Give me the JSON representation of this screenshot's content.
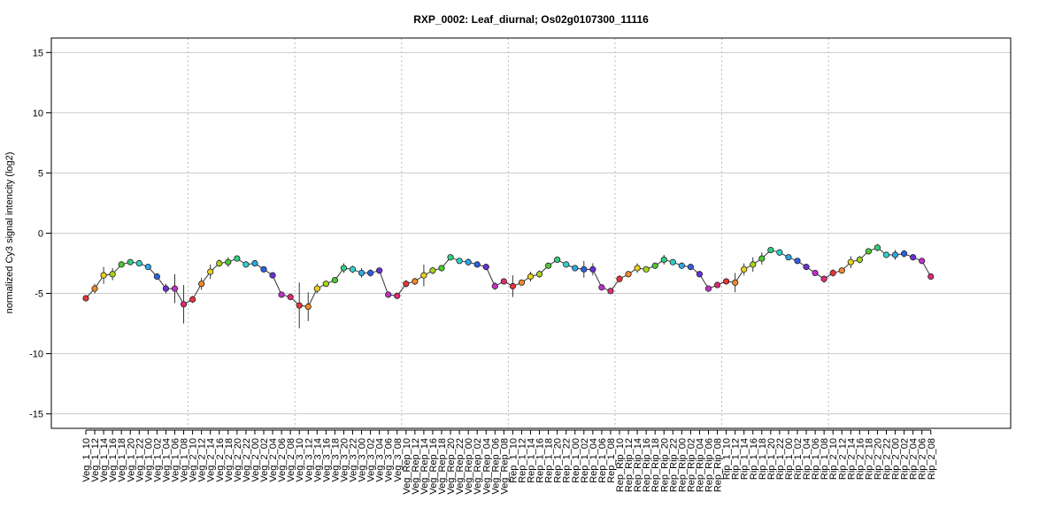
{
  "chart_data": {
    "type": "line",
    "title": "RXP_0002: Leaf_diurnal; Os02g0107300_11116",
    "ylabel": "normalized Cy3 signal intencity (log2)",
    "xlabel": "",
    "ylim": [
      -16.2,
      16.2
    ],
    "yticks": [
      -15,
      -10,
      -5,
      0,
      5,
      10,
      15
    ],
    "grid": true,
    "legend": "none",
    "group_separators_after_index": [
      11,
      23,
      35,
      47,
      59,
      71,
      83
    ],
    "points": [
      {
        "label": "Veg_1_10",
        "value": -5.4,
        "err": 0.25,
        "color": "#e8323c"
      },
      {
        "label": "Veg_1_12",
        "value": -4.6,
        "err": 0.4,
        "color": "#f08a2a"
      },
      {
        "label": "Veg_1_14",
        "value": -3.5,
        "err": 0.7,
        "color": "#e8d020"
      },
      {
        "label": "Veg_1_16",
        "value": -3.4,
        "err": 0.5,
        "color": "#a6d418"
      },
      {
        "label": "Veg_1_18",
        "value": -2.6,
        "err": 0.2,
        "color": "#4ec832"
      },
      {
        "label": "Veg_1_20",
        "value": -2.4,
        "err": 0.15,
        "color": "#30d080"
      },
      {
        "label": "Veg_1_22",
        "value": -2.5,
        "err": 0.15,
        "color": "#30d0c8"
      },
      {
        "label": "Veg_1_00",
        "value": -2.8,
        "err": 0.15,
        "color": "#2aa8e8"
      },
      {
        "label": "Veg_1_02",
        "value": -3.6,
        "err": 0.2,
        "color": "#3060e0"
      },
      {
        "label": "Veg_1_04",
        "value": -4.6,
        "err": 0.4,
        "color": "#6a30d8"
      },
      {
        "label": "Veg_1_06",
        "value": -4.6,
        "err": 1.2,
        "color": "#c030c8"
      },
      {
        "label": "Veg_1_08",
        "value": -5.9,
        "err": 1.6,
        "color": "#e02a78"
      },
      {
        "label": "Veg_2_10",
        "value": -5.5,
        "err": 0.3,
        "color": "#e8323c"
      },
      {
        "label": "Veg_2_12",
        "value": -4.2,
        "err": 0.5,
        "color": "#f08a2a"
      },
      {
        "label": "Veg_2_14",
        "value": -3.2,
        "err": 0.6,
        "color": "#e8d020"
      },
      {
        "label": "Veg_2_16",
        "value": -2.5,
        "err": 0.3,
        "color": "#a6d418"
      },
      {
        "label": "Veg_2_18",
        "value": -2.4,
        "err": 0.4,
        "color": "#4ec832"
      },
      {
        "label": "Veg_2_20",
        "value": -2.1,
        "err": 0.2,
        "color": "#30d080"
      },
      {
        "label": "Veg_2_22",
        "value": -2.6,
        "err": 0.15,
        "color": "#30d0c8"
      },
      {
        "label": "Veg_2_00",
        "value": -2.5,
        "err": 0.15,
        "color": "#2aa8e8"
      },
      {
        "label": "Veg_2_02",
        "value": -3.0,
        "err": 0.2,
        "color": "#3060e0"
      },
      {
        "label": "Veg_2_04",
        "value": -3.5,
        "err": 0.2,
        "color": "#6a30d8"
      },
      {
        "label": "Veg_2_06",
        "value": -5.1,
        "err": 0.15,
        "color": "#c030c8"
      },
      {
        "label": "Veg_2_08",
        "value": -5.3,
        "err": 0.15,
        "color": "#e02a78"
      },
      {
        "label": "Veg_3_10",
        "value": -6.0,
        "err": 1.9,
        "color": "#e8323c"
      },
      {
        "label": "Veg_3_12",
        "value": -6.1,
        "err": 1.2,
        "color": "#f08a2a"
      },
      {
        "label": "Veg_3_14",
        "value": -4.6,
        "err": 0.4,
        "color": "#e8d020"
      },
      {
        "label": "Veg_3_16",
        "value": -4.2,
        "err": 0.2,
        "color": "#a6d418"
      },
      {
        "label": "Veg_3_18",
        "value": -3.9,
        "err": 0.2,
        "color": "#4ec832"
      },
      {
        "label": "Veg_3_20",
        "value": -2.9,
        "err": 0.4,
        "color": "#30d080"
      },
      {
        "label": "Veg_3_22",
        "value": -3.0,
        "err": 0.3,
        "color": "#30d0c8"
      },
      {
        "label": "Veg_3_00",
        "value": -3.3,
        "err": 0.4,
        "color": "#2aa8e8"
      },
      {
        "label": "Veg_3_02",
        "value": -3.3,
        "err": 0.3,
        "color": "#3060e0"
      },
      {
        "label": "Veg_3_04",
        "value": -3.1,
        "err": 0.2,
        "color": "#6a30d8"
      },
      {
        "label": "Veg_3_06",
        "value": -5.1,
        "err": 0.15,
        "color": "#c030c8"
      },
      {
        "label": "Veg_3_08",
        "value": -5.2,
        "err": 0.2,
        "color": "#e02a78"
      },
      {
        "label": "Veg_Rep_10",
        "value": -4.2,
        "err": 0.3,
        "color": "#e8323c"
      },
      {
        "label": "Veg_Rep_12",
        "value": -4.0,
        "err": 0.3,
        "color": "#f08a2a"
      },
      {
        "label": "Veg_Rep_14",
        "value": -3.5,
        "err": 0.9,
        "color": "#e8d020"
      },
      {
        "label": "Veg_Rep_16",
        "value": -3.1,
        "err": 0.3,
        "color": "#a6d418"
      },
      {
        "label": "Veg_Rep_18",
        "value": -2.9,
        "err": 0.2,
        "color": "#4ec832"
      },
      {
        "label": "Veg_Rep_20",
        "value": -2.0,
        "err": 0.15,
        "color": "#30d080"
      },
      {
        "label": "Veg_Rep_22",
        "value": -2.3,
        "err": 0.15,
        "color": "#30d0c8"
      },
      {
        "label": "Veg_Rep_00",
        "value": -2.4,
        "err": 0.3,
        "color": "#2aa8e8"
      },
      {
        "label": "Veg_Rep_02",
        "value": -2.6,
        "err": 0.2,
        "color": "#3060e0"
      },
      {
        "label": "Veg_Rep_04",
        "value": -2.8,
        "err": 0.15,
        "color": "#6a30d8"
      },
      {
        "label": "Veg_Rep_06",
        "value": -4.4,
        "err": 0.3,
        "color": "#c030c8"
      },
      {
        "label": "Veg_Rep_08",
        "value": -4.0,
        "err": 0.15,
        "color": "#e02a78"
      },
      {
        "label": "Rep_1_10",
        "value": -4.4,
        "err": 0.9,
        "color": "#e8323c"
      },
      {
        "label": "Rep_1_12",
        "value": -4.1,
        "err": 0.2,
        "color": "#f08a2a"
      },
      {
        "label": "Rep_1_14",
        "value": -3.6,
        "err": 0.4,
        "color": "#e8d020"
      },
      {
        "label": "Rep_1_16",
        "value": -3.4,
        "err": 0.3,
        "color": "#a6d418"
      },
      {
        "label": "Rep_1_18",
        "value": -2.7,
        "err": 0.15,
        "color": "#4ec832"
      },
      {
        "label": "Rep_1_20",
        "value": -2.2,
        "err": 0.15,
        "color": "#30d080"
      },
      {
        "label": "Rep_1_22",
        "value": -2.6,
        "err": 0.15,
        "color": "#30d0c8"
      },
      {
        "label": "Rep_1_00",
        "value": -2.9,
        "err": 0.15,
        "color": "#2aa8e8"
      },
      {
        "label": "Rep_1_02",
        "value": -3.0,
        "err": 0.7,
        "color": "#3060e0"
      },
      {
        "label": "Rep_1_04",
        "value": -3.0,
        "err": 0.5,
        "color": "#6a30d8"
      },
      {
        "label": "Rep_1_06",
        "value": -4.5,
        "err": 0.15,
        "color": "#c030c8"
      },
      {
        "label": "Rep_1_08",
        "value": -4.8,
        "err": 0.15,
        "color": "#e02a78"
      },
      {
        "label": "Rep_Rip_10",
        "value": -3.8,
        "err": 0.3,
        "color": "#e8323c"
      },
      {
        "label": "Rep_Rip_12",
        "value": -3.4,
        "err": 0.2,
        "color": "#f08a2a"
      },
      {
        "label": "Rep_Rip_14",
        "value": -2.9,
        "err": 0.4,
        "color": "#e8d020"
      },
      {
        "label": "Rep_Rip_16",
        "value": -3.0,
        "err": 0.2,
        "color": "#a6d418"
      },
      {
        "label": "Rep_Rip_18",
        "value": -2.7,
        "err": 0.2,
        "color": "#4ec832"
      },
      {
        "label": "Rep_Rip_20",
        "value": -2.2,
        "err": 0.4,
        "color": "#30d080"
      },
      {
        "label": "Rep_Rip_22",
        "value": -2.4,
        "err": 0.15,
        "color": "#30d0c8"
      },
      {
        "label": "Rep_Rip_00",
        "value": -2.7,
        "err": 0.15,
        "color": "#2aa8e8"
      },
      {
        "label": "Rep_Rip_02",
        "value": -2.8,
        "err": 0.15,
        "color": "#3060e0"
      },
      {
        "label": "Rep_Rip_04",
        "value": -3.4,
        "err": 0.15,
        "color": "#6a30d8"
      },
      {
        "label": "Rep_Rip_06",
        "value": -4.6,
        "err": 0.15,
        "color": "#c030c8"
      },
      {
        "label": "Rep_Rip_08",
        "value": -4.3,
        "err": 0.15,
        "color": "#e02a78"
      },
      {
        "label": "Rip_1_10",
        "value": -4.0,
        "err": 0.2,
        "color": "#e8323c"
      },
      {
        "label": "Rip_1_12",
        "value": -4.1,
        "err": 0.8,
        "color": "#f08a2a"
      },
      {
        "label": "Rip_1_14",
        "value": -3.0,
        "err": 0.5,
        "color": "#e8d020"
      },
      {
        "label": "Rip_1_16",
        "value": -2.6,
        "err": 0.6,
        "color": "#a6d418"
      },
      {
        "label": "Rip_1_18",
        "value": -2.1,
        "err": 0.5,
        "color": "#4ec832"
      },
      {
        "label": "Rip_1_20",
        "value": -1.4,
        "err": 0.15,
        "color": "#30d080"
      },
      {
        "label": "Rip_1_22",
        "value": -1.6,
        "err": 0.2,
        "color": "#30d0c8"
      },
      {
        "label": "Rip_1_00",
        "value": -2.0,
        "err": 0.15,
        "color": "#2aa8e8"
      },
      {
        "label": "Rip_1_02",
        "value": -2.3,
        "err": 0.15,
        "color": "#3060e0"
      },
      {
        "label": "Rip_1_04",
        "value": -2.8,
        "err": 0.15,
        "color": "#6a30d8"
      },
      {
        "label": "Rip_1_06",
        "value": -3.3,
        "err": 0.15,
        "color": "#c030c8"
      },
      {
        "label": "Rip_1_08",
        "value": -3.8,
        "err": 0.3,
        "color": "#e02a78"
      },
      {
        "label": "Rip_2_10",
        "value": -3.3,
        "err": 0.3,
        "color": "#e8323c"
      },
      {
        "label": "Rip_2_12",
        "value": -3.1,
        "err": 0.2,
        "color": "#f08a2a"
      },
      {
        "label": "Rip_2_14",
        "value": -2.4,
        "err": 0.5,
        "color": "#e8d020"
      },
      {
        "label": "Rip_2_16",
        "value": -2.2,
        "err": 0.3,
        "color": "#a6d418"
      },
      {
        "label": "Rip_2_18",
        "value": -1.5,
        "err": 0.2,
        "color": "#4ec832"
      },
      {
        "label": "Rip_2_20",
        "value": -1.2,
        "err": 0.3,
        "color": "#30d080"
      },
      {
        "label": "Rip_2_22",
        "value": -1.8,
        "err": 0.2,
        "color": "#30d0c8"
      },
      {
        "label": "Rip_2_00",
        "value": -1.8,
        "err": 0.4,
        "color": "#2aa8e8"
      },
      {
        "label": "Rip_2_02",
        "value": -1.7,
        "err": 0.3,
        "color": "#3060e0"
      },
      {
        "label": "Rip_2_04",
        "value": -2.0,
        "err": 0.15,
        "color": "#6a30d8"
      },
      {
        "label": "Rip_2_06",
        "value": -2.3,
        "err": 0.15,
        "color": "#c030c8"
      },
      {
        "label": "Rip_2_08",
        "value": -3.6,
        "err": 0.15,
        "color": "#e02a78"
      }
    ]
  }
}
